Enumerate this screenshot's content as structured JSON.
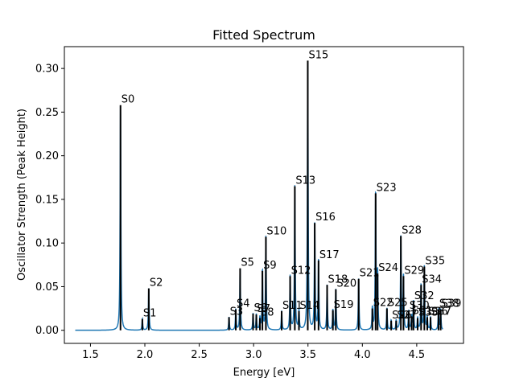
{
  "chart_data": {
    "type": "line",
    "title": "Fitted Spectrum",
    "xlabel": "Energy [eV]",
    "ylabel": "Oscillator Strength (Peak Height)",
    "xlim": [
      1.26,
      4.93
    ],
    "ylim": [
      -0.015,
      0.325
    ],
    "xticks": [
      1.5,
      2.0,
      2.5,
      3.0,
      3.5,
      4.0,
      4.5
    ],
    "xtick_labels": [
      "1.5",
      "2.0",
      "2.5",
      "3.0",
      "3.5",
      "4.0",
      "4.5"
    ],
    "yticks": [
      0.0,
      0.05,
      0.1,
      0.15,
      0.2,
      0.25,
      0.3
    ],
    "ytick_labels": [
      "0.00",
      "0.05",
      "0.10",
      "0.15",
      "0.20",
      "0.25",
      "0.30"
    ],
    "grid": false,
    "legend": "none",
    "curve_color": "#1f77b4",
    "stick_color": "#000000",
    "curve_range": [
      1.36,
      4.74
    ],
    "peak_width": 0.004,
    "states": [
      {
        "label": "S0",
        "x": 1.776,
        "y": 0.258
      },
      {
        "label": "S1",
        "x": 1.977,
        "y": 0.013
      },
      {
        "label": "S2",
        "x": 2.036,
        "y": 0.048
      },
      {
        "label": "S3",
        "x": 2.774,
        "y": 0.015
      },
      {
        "label": "S4",
        "x": 2.836,
        "y": 0.024
      },
      {
        "label": "S5",
        "x": 2.876,
        "y": 0.071
      },
      {
        "label": "S6",
        "x": 2.995,
        "y": 0.019
      },
      {
        "label": "S7",
        "x": 3.025,
        "y": 0.018
      },
      {
        "label": "S8",
        "x": 3.058,
        "y": 0.014
      },
      {
        "label": "S9",
        "x": 3.081,
        "y": 0.068
      },
      {
        "label": "S10",
        "x": 3.113,
        "y": 0.107
      },
      {
        "label": "S11",
        "x": 3.258,
        "y": 0.022
      },
      {
        "label": "S12",
        "x": 3.336,
        "y": 0.062
      },
      {
        "label": "S13",
        "x": 3.379,
        "y": 0.165
      },
      {
        "label": "S14",
        "x": 3.417,
        "y": 0.022
      },
      {
        "label": "S15",
        "x": 3.498,
        "y": 0.309
      },
      {
        "label": "S16",
        "x": 3.562,
        "y": 0.123
      },
      {
        "label": "S17",
        "x": 3.597,
        "y": 0.08
      },
      {
        "label": "S18",
        "x": 3.676,
        "y": 0.052
      },
      {
        "label": "S19",
        "x": 3.729,
        "y": 0.023
      },
      {
        "label": "S20",
        "x": 3.756,
        "y": 0.047
      },
      {
        "label": "S21",
        "x": 3.966,
        "y": 0.059
      },
      {
        "label": "S22",
        "x": 4.092,
        "y": 0.025
      },
      {
        "label": "S23",
        "x": 4.122,
        "y": 0.157
      },
      {
        "label": "S24",
        "x": 4.14,
        "y": 0.065
      },
      {
        "label": "S25",
        "x": 4.226,
        "y": 0.025
      },
      {
        "label": "S26",
        "x": 4.265,
        "y": 0.011
      },
      {
        "label": "S27",
        "x": 4.311,
        "y": 0.011
      },
      {
        "label": "S28",
        "x": 4.354,
        "y": 0.108
      },
      {
        "label": "S29",
        "x": 4.378,
        "y": 0.062
      },
      {
        "label": "S30",
        "x": 4.426,
        "y": 0.022
      },
      {
        "label": "S31",
        "x": 4.453,
        "y": 0.016
      },
      {
        "label": "S32",
        "x": 4.47,
        "y": 0.033
      },
      {
        "label": "S33",
        "x": 4.508,
        "y": 0.014
      },
      {
        "label": "S34",
        "x": 4.54,
        "y": 0.052
      },
      {
        "label": "S35",
        "x": 4.57,
        "y": 0.073
      },
      {
        "label": "S36",
        "x": 4.597,
        "y": 0.015
      },
      {
        "label": "S37",
        "x": 4.627,
        "y": 0.015
      },
      {
        "label": "S38",
        "x": 4.7,
        "y": 0.024
      },
      {
        "label": "S39",
        "x": 4.72,
        "y": 0.024
      }
    ]
  }
}
